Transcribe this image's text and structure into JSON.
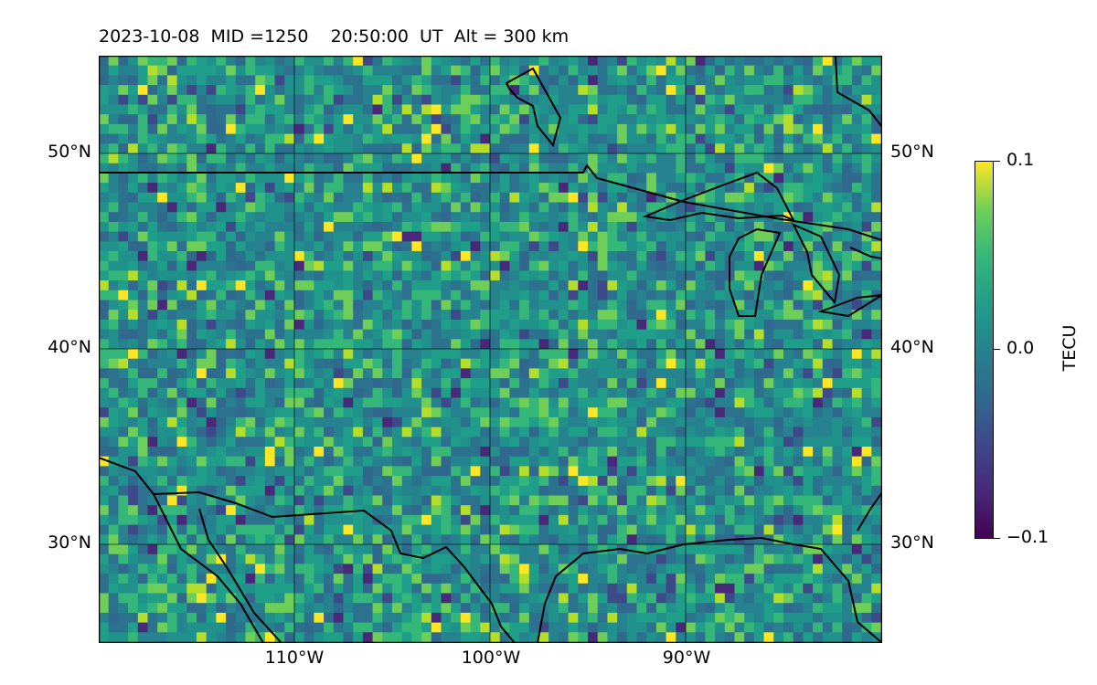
{
  "title": "2023-10-08  MID =1250    20:50:00  UT  Alt = 300 km",
  "map": {
    "lat_labels": [
      "50°N",
      "40°N",
      "30°N"
    ],
    "lon_labels": [
      "110°W",
      "100°W",
      "90°W"
    ],
    "grid": true,
    "extent": {
      "lon_min": -120,
      "lon_max": -80,
      "lat_min": 25,
      "lat_max": 55
    },
    "colormap": "viridis"
  },
  "colorbar": {
    "title": "TECU",
    "ticks": [
      "0.1",
      "0.0",
      "−0.1"
    ],
    "vmin": -0.1,
    "vmax": 0.1,
    "colors": [
      "#440154",
      "#3e4989",
      "#26828e",
      "#35b779",
      "#fde725"
    ]
  }
}
